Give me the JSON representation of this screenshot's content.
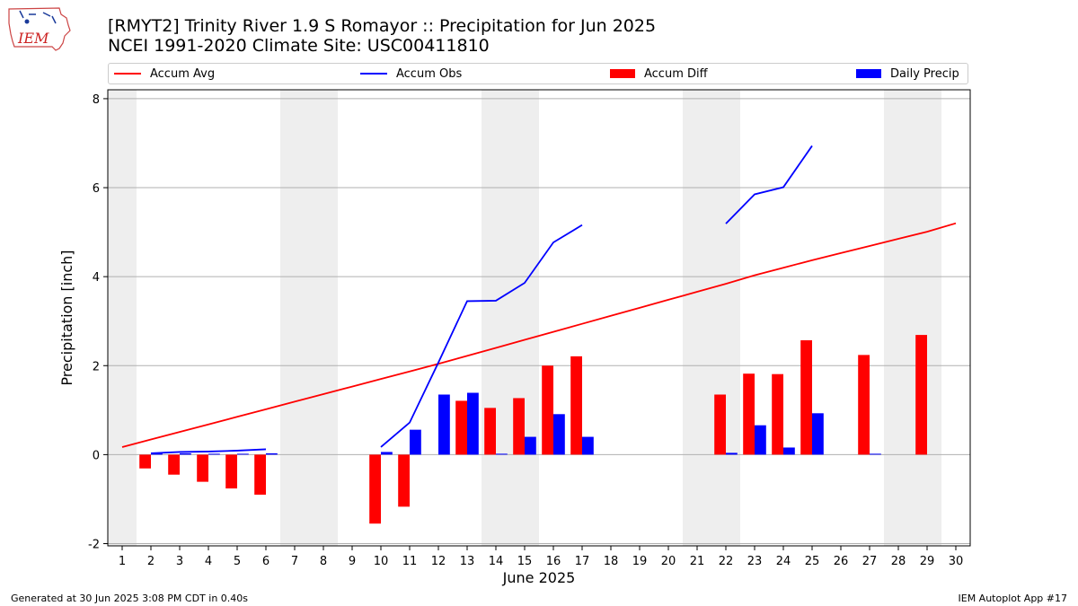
{
  "header": {
    "title_line1": "[RMYT2] Trinity River 1.9 S Romayor :: Precipitation for Jun 2025",
    "title_line2": "NCEI 1991-2020 Climate Site: USC00411810"
  },
  "logo": {
    "text": "IEM"
  },
  "legend": {
    "accum_avg": "Accum Avg",
    "accum_obs": "Accum Obs",
    "accum_diff": "Accum Diff",
    "daily_precip": "Daily Precip"
  },
  "footer": {
    "left": "Generated at 30 Jun 2025 3:08 PM CDT in 0.40s",
    "right": "IEM Autoplot App #17"
  },
  "colors": {
    "avg": "#ff0000",
    "obs": "#0000ff",
    "diff": "#ff0000",
    "daily": "#0000ff",
    "weekend": "#eeeeee",
    "grid": "#b0b0b0"
  },
  "chart_data": {
    "type": "bar",
    "xlabel": "June 2025",
    "ylabel": "Precipitation [inch]",
    "xlim": [
      0.5,
      30.5
    ],
    "ylim": [
      -2.05,
      8.2
    ],
    "yticks": [
      -2,
      0,
      2,
      4,
      6,
      8
    ],
    "xticks": [
      1,
      2,
      3,
      4,
      5,
      6,
      7,
      8,
      9,
      10,
      11,
      12,
      13,
      14,
      15,
      16,
      17,
      18,
      19,
      20,
      21,
      22,
      23,
      24,
      25,
      26,
      27,
      28,
      29,
      30
    ],
    "grid": true,
    "legend_position": "top",
    "weekend_days": [
      1,
      7,
      8,
      14,
      15,
      21,
      22,
      28,
      29
    ],
    "series": [
      {
        "name": "Accum Avg",
        "kind": "line",
        "color": "#ff0000",
        "x": [
          1,
          2,
          3,
          4,
          5,
          6,
          7,
          8,
          9,
          10,
          11,
          12,
          13,
          14,
          15,
          16,
          17,
          18,
          19,
          20,
          21,
          22,
          23,
          24,
          25,
          26,
          27,
          28,
          29,
          30
        ],
        "values": [
          0.17,
          0.34,
          0.51,
          0.68,
          0.85,
          1.02,
          1.19,
          1.36,
          1.53,
          1.7,
          1.87,
          2.04,
          2.22,
          2.4,
          2.58,
          2.76,
          2.94,
          3.12,
          3.3,
          3.48,
          3.66,
          3.84,
          4.03,
          4.2,
          4.37,
          4.53,
          4.69,
          4.85,
          5.01,
          5.2
        ]
      },
      {
        "name": "Accum Obs",
        "kind": "line",
        "color": "#0000ff",
        "segments": [
          {
            "x": [
              2,
              3,
              4,
              5,
              6
            ],
            "values": [
              0.03,
              0.06,
              0.07,
              0.09,
              0.12
            ]
          },
          {
            "x": [
              10,
              11,
              12,
              13,
              14,
              15,
              16,
              17
            ],
            "values": [
              0.17,
              0.72,
              2.07,
              3.45,
              3.46,
              3.86,
              4.77,
              5.16
            ]
          },
          {
            "x": [
              22,
              23,
              24,
              25
            ],
            "values": [
              5.19,
              5.85,
              6.01,
              6.94
            ]
          }
        ]
      },
      {
        "name": "Accum Diff",
        "kind": "bar",
        "color": "#ff0000",
        "offset": -0.2,
        "x": [
          2,
          3,
          4,
          5,
          6,
          10,
          11,
          13,
          14,
          15,
          16,
          17,
          22,
          23,
          24,
          25,
          27,
          29
        ],
        "values": [
          -0.31,
          -0.45,
          -0.61,
          -0.76,
          -0.9,
          -1.55,
          -1.17,
          1.21,
          1.05,
          1.27,
          2.0,
          2.21,
          1.35,
          1.82,
          1.81,
          2.57,
          2.24,
          2.69
        ]
      },
      {
        "name": "Daily Precip",
        "kind": "bar",
        "color": "#0000ff",
        "offset": 0.2,
        "x": [
          2,
          3,
          4,
          5,
          6,
          10,
          11,
          12,
          13,
          14,
          15,
          16,
          17,
          22,
          23,
          24,
          25,
          27
        ],
        "values": [
          0.03,
          0.03,
          0.02,
          0.02,
          0.03,
          0.06,
          0.56,
          1.35,
          1.39,
          0.02,
          0.4,
          0.91,
          0.4,
          0.04,
          0.66,
          0.16,
          0.93,
          0.02
        ]
      }
    ]
  }
}
